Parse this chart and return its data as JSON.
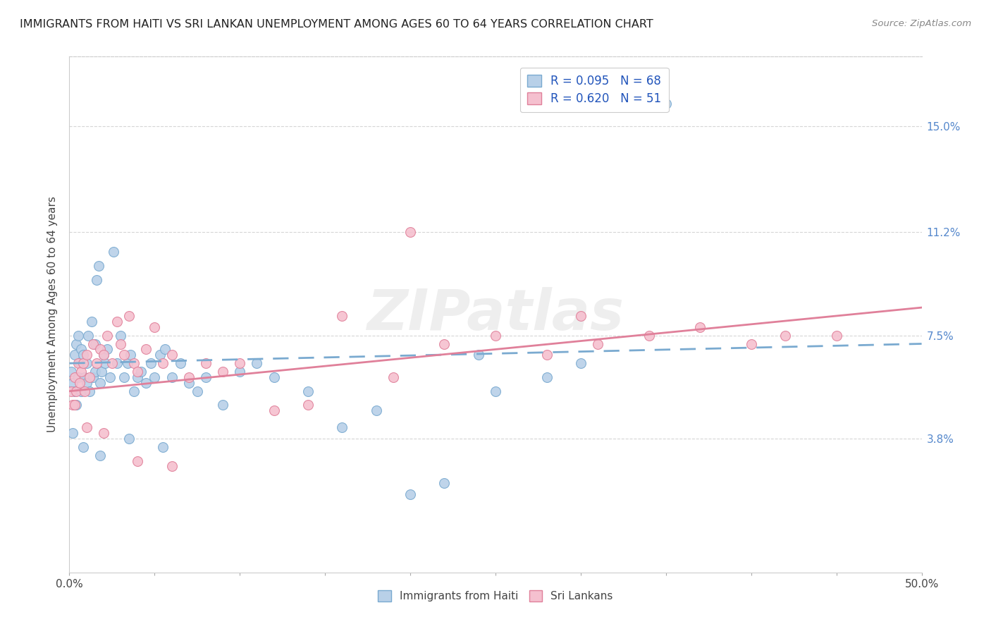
{
  "title": "IMMIGRANTS FROM HAITI VS SRI LANKAN UNEMPLOYMENT AMONG AGES 60 TO 64 YEARS CORRELATION CHART",
  "source": "Source: ZipAtlas.com",
  "ylabel": "Unemployment Among Ages 60 to 64 years",
  "xlim": [
    0.0,
    0.5
  ],
  "ylim": [
    -0.01,
    0.175
  ],
  "right_yticks": [
    0.038,
    0.075,
    0.112,
    0.15
  ],
  "right_yticklabels": [
    "3.8%",
    "7.5%",
    "11.2%",
    "15.0%"
  ],
  "haiti_color": "#b8d0e8",
  "haiti_edge_color": "#7aaad0",
  "srilanka_color": "#f5c0cf",
  "srilanka_edge_color": "#e0809a",
  "haiti_r": 0.095,
  "haiti_n": 68,
  "srilanka_r": 0.62,
  "srilanka_n": 51,
  "haiti_line_color": "#7aaad0",
  "srilanka_line_color": "#e0809a",
  "watermark": "ZIPatlas",
  "haiti_x": [
    0.001,
    0.002,
    0.003,
    0.003,
    0.004,
    0.004,
    0.005,
    0.005,
    0.006,
    0.007,
    0.007,
    0.008,
    0.009,
    0.01,
    0.01,
    0.011,
    0.012,
    0.013,
    0.014,
    0.015,
    0.015,
    0.016,
    0.017,
    0.018,
    0.019,
    0.02,
    0.021,
    0.022,
    0.024,
    0.026,
    0.028,
    0.03,
    0.032,
    0.034,
    0.036,
    0.038,
    0.04,
    0.042,
    0.045,
    0.048,
    0.05,
    0.053,
    0.056,
    0.06,
    0.065,
    0.07,
    0.075,
    0.08,
    0.09,
    0.1,
    0.11,
    0.12,
    0.14,
    0.16,
    0.18,
    0.2,
    0.22,
    0.25,
    0.28,
    0.3,
    0.32,
    0.35,
    0.002,
    0.008,
    0.018,
    0.035,
    0.055,
    0.24
  ],
  "haiti_y": [
    0.062,
    0.058,
    0.068,
    0.055,
    0.072,
    0.05,
    0.075,
    0.06,
    0.065,
    0.07,
    0.055,
    0.068,
    0.06,
    0.065,
    0.058,
    0.075,
    0.055,
    0.08,
    0.06,
    0.072,
    0.062,
    0.095,
    0.1,
    0.058,
    0.062,
    0.068,
    0.065,
    0.07,
    0.06,
    0.105,
    0.065,
    0.075,
    0.06,
    0.065,
    0.068,
    0.055,
    0.06,
    0.062,
    0.058,
    0.065,
    0.06,
    0.068,
    0.07,
    0.06,
    0.065,
    0.058,
    0.055,
    0.06,
    0.05,
    0.062,
    0.065,
    0.06,
    0.055,
    0.042,
    0.048,
    0.018,
    0.022,
    0.055,
    0.06,
    0.065,
    0.158,
    0.158,
    0.04,
    0.035,
    0.032,
    0.038,
    0.035,
    0.068
  ],
  "srilanka_x": [
    0.001,
    0.002,
    0.003,
    0.004,
    0.005,
    0.006,
    0.007,
    0.008,
    0.009,
    0.01,
    0.012,
    0.014,
    0.016,
    0.018,
    0.02,
    0.022,
    0.025,
    0.028,
    0.03,
    0.032,
    0.035,
    0.038,
    0.04,
    0.045,
    0.05,
    0.055,
    0.06,
    0.07,
    0.08,
    0.09,
    0.1,
    0.12,
    0.14,
    0.16,
    0.19,
    0.22,
    0.25,
    0.28,
    0.31,
    0.34,
    0.37,
    0.4,
    0.42,
    0.45,
    0.003,
    0.01,
    0.02,
    0.04,
    0.06,
    0.2,
    0.3
  ],
  "srilanka_y": [
    0.055,
    0.05,
    0.06,
    0.055,
    0.065,
    0.058,
    0.062,
    0.065,
    0.055,
    0.068,
    0.06,
    0.072,
    0.065,
    0.07,
    0.068,
    0.075,
    0.065,
    0.08,
    0.072,
    0.068,
    0.082,
    0.065,
    0.062,
    0.07,
    0.078,
    0.065,
    0.068,
    0.06,
    0.065,
    0.062,
    0.065,
    0.048,
    0.05,
    0.082,
    0.06,
    0.072,
    0.075,
    0.068,
    0.072,
    0.075,
    0.078,
    0.072,
    0.075,
    0.075,
    0.05,
    0.042,
    0.04,
    0.03,
    0.028,
    0.112,
    0.082
  ]
}
